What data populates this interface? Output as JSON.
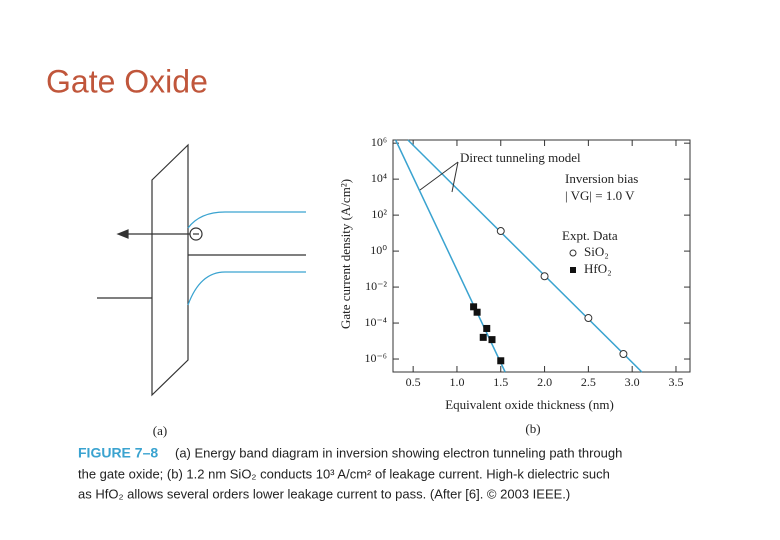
{
  "title": "Gate Oxide",
  "diagram": {
    "label_a": "(a)",
    "label_b": "(b)"
  },
  "caption": {
    "figure": "FIGURE 7–8",
    "lines": [
      "(a) Energy band diagram in inversion showing electron tunneling path through",
      "the gate oxide; (b) 1.2 nm SiO₂ conducts 10³ A/cm² of leakage current. High-k dielectric such",
      "as HfO₂ allows several orders lower leakage current to pass. (After [6]. © 2003 IEEE.)"
    ]
  },
  "chart_data": {
    "type": "scatter",
    "x_label": "Equivalent oxide thickness (nm)",
    "y_label": "Gate current density (A/cm²)",
    "y_scale": "log",
    "xlim": [
      0.27,
      3.66
    ],
    "ylim": [
      1.9e-07,
      1500000
    ],
    "xticks": [
      {
        "value": 0.5,
        "label": "0.5"
      },
      {
        "value": 1,
        "label": "1.0"
      },
      {
        "value": 1.5,
        "label": "1.5"
      },
      {
        "value": 2,
        "label": "2.0"
      },
      {
        "value": 2.5,
        "label": "2.5"
      },
      {
        "value": 3,
        "label": "3.0"
      },
      {
        "value": 3.5,
        "label": "3.5"
      }
    ],
    "yticks": [
      {
        "value": 1000000,
        "label": "10⁶"
      },
      {
        "value": 10000,
        "label": "10⁴"
      },
      {
        "value": 100,
        "label": "10²"
      },
      {
        "value": 1,
        "label": "10⁰"
      },
      {
        "value": 0.01,
        "label": "10⁻²"
      },
      {
        "value": 0.0001,
        "label": "10⁻⁴"
      },
      {
        "value": 1e-06,
        "label": "10⁻⁶"
      }
    ],
    "annotations": [
      "Direct tunneling model",
      "Inversion bias",
      "| VG| = 1.0 V"
    ],
    "legend_title": "Expt. Data",
    "fit_lines": [
      {
        "color": "#3aa3d0",
        "x": [
          0.44,
          3.11
        ],
        "values": [
          1500000,
          1.9e-07
        ]
      },
      {
        "color": "#3aa3d0",
        "x": [
          0.3,
          1.55
        ],
        "values": [
          1500000,
          1.9e-07
        ]
      }
    ],
    "series": [
      {
        "name": "SiO₂",
        "marker": "open-circle",
        "color": "#333333",
        "x": [
          1.5,
          2.0,
          2.5,
          2.9
        ],
        "values": [
          13,
          0.04,
          0.00019,
          1.9e-06
        ]
      },
      {
        "name": "HfO₂",
        "marker": "square",
        "color": "#111111",
        "x": [
          1.19,
          1.23,
          1.34,
          1.3,
          1.4,
          1.5
        ],
        "values": [
          0.0008,
          0.0004,
          5e-05,
          1.6e-05,
          1.2e-05,
          8e-07
        ]
      }
    ]
  }
}
